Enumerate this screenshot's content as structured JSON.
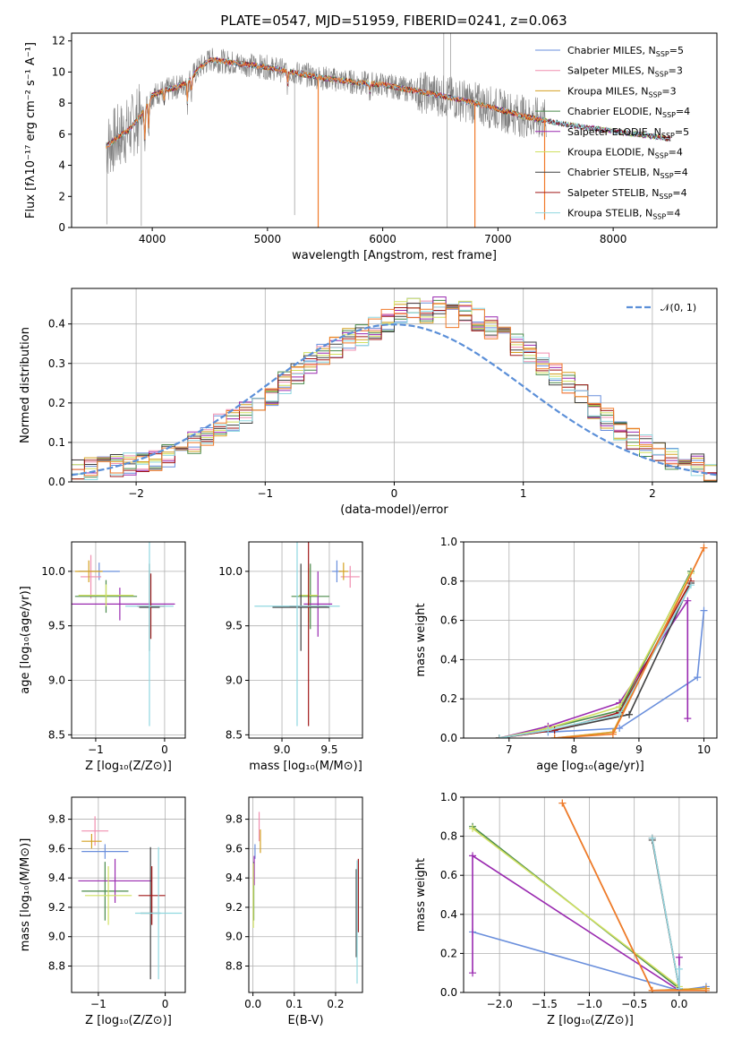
{
  "figure": {
    "title": "PLATE=0547, MJD=51959, FIBERID=0241, z=0.063"
  },
  "colors": {
    "Chabrier MILES": "#6a8fdc",
    "Salpeter MILES": "#f08fb0",
    "Kroupa MILES": "#d4a020",
    "Chabrier ELODIE": "#4a8a4a",
    "Salpeter ELODIE": "#9a2ab0",
    "Kroupa ELODIE": "#d0e060",
    "Chabrier STELIB": "#404040",
    "Salpeter STELIB": "#a01818",
    "Kroupa STELIB": "#90d8e0",
    "orange": "#f07a2a",
    "data_gray": "#808080",
    "normal_dashed": "#5b8fd8"
  },
  "chart_data": [
    {
      "id": "spectrum",
      "type": "line",
      "title": "PLATE=0547, MJD=51959, FIBERID=0241, z=0.063",
      "xlabel": "wavelength [Angstrom, rest frame]",
      "ylabel": "Flux [fλ10⁻¹⁷ erg cm⁻² s⁻¹ A⁻¹]",
      "xlim": [
        3300,
        8900
      ],
      "ylim": [
        0,
        12.5
      ],
      "xticks": [
        4000,
        5000,
        6000,
        7000,
        8000
      ],
      "yticks": [
        0,
        2,
        4,
        6,
        8,
        10,
        12
      ],
      "xtick_labels": [
        "4000",
        "5000",
        "6000",
        "7000",
        "8000"
      ],
      "ytick_labels": [
        "0",
        "2",
        "4",
        "6",
        "8",
        "10",
        "12"
      ],
      "legend_loc": "upper-right",
      "legend": [
        {
          "label": "Chabrier MILES, N",
          "sub": "SSP",
          "tail": "=5"
        },
        {
          "label": "Salpeter MILES, N",
          "sub": "SSP",
          "tail": "=3"
        },
        {
          "label": "Kroupa MILES, N",
          "sub": "SSP",
          "tail": "=3"
        },
        {
          "label": "Chabrier ELODIE, N",
          "sub": "SSP",
          "tail": "=4"
        },
        {
          "label": "Salpeter ELODIE, N",
          "sub": "SSP",
          "tail": "=5"
        },
        {
          "label": "Kroupa ELODIE, N",
          "sub": "SSP",
          "tail": "=4"
        },
        {
          "label": "Chabrier STELIB, N",
          "sub": "SSP",
          "tail": "=4"
        },
        {
          "label": "Salpeter STELIB, N",
          "sub": "SSP",
          "tail": "=4"
        },
        {
          "label": "Kroupa STELIB, N",
          "sub": "SSP",
          "tail": "=4"
        }
      ],
      "continuum": {
        "x": [
          3600,
          3700,
          3800,
          3900,
          4000,
          4100,
          4200,
          4300,
          4400,
          4500,
          4600,
          4800,
          5000,
          5200,
          5500,
          5800,
          6000,
          6200,
          6500,
          6800,
          7000,
          7200,
          7400,
          7600,
          7800,
          8000,
          8200,
          8400,
          8500
        ],
        "y": [
          5.2,
          5.8,
          6.3,
          7.2,
          8.5,
          8.8,
          9.0,
          9.3,
          10.2,
          10.8,
          10.7,
          10.5,
          10.3,
          10.0,
          9.6,
          9.3,
          9.2,
          8.9,
          8.5,
          8.0,
          7.6,
          7.2,
          6.9,
          6.6,
          6.4,
          6.2,
          6.0,
          5.8,
          5.7
        ]
      },
      "absorption_lines": [
        {
          "x": 3934,
          "depth": 2.5
        },
        {
          "x": 3969,
          "depth": 2.0
        },
        {
          "x": 4102,
          "depth": 1.0
        },
        {
          "x": 4304,
          "depth": 1.5
        },
        {
          "x": 4340,
          "depth": 1.2
        },
        {
          "x": 5175,
          "depth": 1.0
        },
        {
          "x": 5890,
          "depth": 0.7
        }
      ],
      "model_spikes": [
        {
          "x": 5440,
          "to": 0
        },
        {
          "x": 6800,
          "to": 0
        },
        {
          "x": 7405,
          "to": 0.5
        }
      ]
    },
    {
      "id": "residuals",
      "type": "bar",
      "xlabel": "(data-model)/error",
      "ylabel": "Normed distribution",
      "xlim": [
        -2.5,
        2.5
      ],
      "ylim": [
        0,
        0.49
      ],
      "xticks": [
        -2,
        -1,
        0,
        1,
        2
      ],
      "yticks": [
        0.0,
        0.1,
        0.2,
        0.3,
        0.4
      ],
      "xtick_labels": [
        "−2",
        "−1",
        "0",
        "1",
        "2"
      ],
      "ytick_labels": [
        "0.0",
        "0.1",
        "0.2",
        "0.3",
        "0.4"
      ],
      "legend_loc": "upper-right",
      "legend": [
        "𝒩(0, 1)"
      ],
      "bin_width": 0.1,
      "bin_start": -2.5,
      "hist_base": [
        0.03,
        0.035,
        0.04,
        0.04,
        0.045,
        0.05,
        0.055,
        0.065,
        0.085,
        0.1,
        0.12,
        0.145,
        0.155,
        0.175,
        0.2,
        0.22,
        0.25,
        0.27,
        0.3,
        0.32,
        0.34,
        0.36,
        0.37,
        0.39,
        0.41,
        0.43,
        0.44,
        0.43,
        0.44,
        0.42,
        0.43,
        0.41,
        0.39,
        0.37,
        0.35,
        0.33,
        0.3,
        0.27,
        0.25,
        0.22,
        0.19,
        0.16,
        0.13,
        0.11,
        0.09,
        0.075,
        0.06,
        0.05,
        0.045,
        0.03
      ]
    },
    {
      "id": "age-vs-Z",
      "type": "scatter",
      "xlabel": "Z [log₁₀(Z/Z⊙)]",
      "ylabel": "age  [log₁₀(age/yr)]",
      "xlim": [
        -1.35,
        0.3
      ],
      "ylim": [
        8.47,
        10.27
      ],
      "xticks": [
        -1,
        0
      ],
      "yticks": [
        8.5,
        9.0,
        9.5,
        10.0
      ],
      "xtick_labels": [
        "−1",
        "0"
      ],
      "ytick_labels": [
        "8.5",
        "9.0",
        "9.5",
        "10.0"
      ],
      "points": [
        {
          "s": "Chabrier MILES",
          "x": -0.95,
          "y": 10.0,
          "xe": 0.3,
          "ye": 0.08
        },
        {
          "s": "Salpeter MILES",
          "x": -1.07,
          "y": 9.95,
          "xe": 0.15,
          "ye": 0.2
        },
        {
          "s": "Kroupa MILES",
          "x": -1.1,
          "y": 10.0,
          "xe": 0.2,
          "ye": 0.1
        },
        {
          "s": "Chabrier ELODIE",
          "x": -0.85,
          "y": 9.77,
          "xe": 0.45,
          "ye": 0.15
        },
        {
          "s": "Salpeter ELODIE",
          "x": -0.65,
          "y": 9.7,
          "xe": 0.8,
          "ye": 0.15
        },
        {
          "s": "Kroupa ELODIE",
          "x": -0.85,
          "y": 9.78,
          "xe": 0.4,
          "ye": 0.1
        },
        {
          "s": "Chabrier STELIB",
          "x": -0.22,
          "y": 9.67,
          "xe": 0.15,
          "ye": 0.4
        },
        {
          "s": "Salpeter STELIB",
          "x": -0.2,
          "y": 9.68,
          "xe": 0.2,
          "ye": 0.3
        },
        {
          "s": "Kroupa STELIB",
          "x": -0.22,
          "y": 9.68,
          "xe": 0.35,
          "ye": 1.1
        }
      ]
    },
    {
      "id": "age-vs-mass",
      "type": "scatter",
      "xlabel": "mass [log₁₀(M/M⊙)]",
      "ylabel": "",
      "xlim": [
        8.65,
        9.85
      ],
      "ylim": [
        8.47,
        10.27
      ],
      "xticks": [
        9.0,
        9.5
      ],
      "yticks": [
        8.5,
        9.0,
        9.5,
        10.0
      ],
      "xtick_labels": [
        "9.0",
        "9.5"
      ],
      "ytick_labels": [
        "8.5",
        "9.0",
        "9.5",
        "10.0"
      ],
      "points": [
        {
          "s": "Chabrier MILES",
          "x": 9.58,
          "y": 10.0,
          "xe": 0.05,
          "ye": 0.1
        },
        {
          "s": "Salpeter MILES",
          "x": 9.72,
          "y": 9.95,
          "xe": 0.1,
          "ye": 0.1
        },
        {
          "s": "Kroupa MILES",
          "x": 9.65,
          "y": 10.0,
          "xe": 0.05,
          "ye": 0.08
        },
        {
          "s": "Chabrier ELODIE",
          "x": 9.3,
          "y": 9.77,
          "xe": 0.2,
          "ye": 0.3
        },
        {
          "s": "Salpeter ELODIE",
          "x": 9.38,
          "y": 9.7,
          "xe": 0.15,
          "ye": 0.3
        },
        {
          "s": "Kroupa ELODIE",
          "x": 9.28,
          "y": 9.78,
          "xe": 0.1,
          "ye": 0.25
        },
        {
          "s": "Chabrier STELIB",
          "x": 9.2,
          "y": 9.67,
          "xe": 0.3,
          "ye": 0.4
        },
        {
          "s": "Salpeter STELIB",
          "x": 9.28,
          "y": 9.68,
          "xe": 0.2,
          "ye": 1.1
        },
        {
          "s": "Kroupa STELIB",
          "x": 9.16,
          "y": 9.68,
          "xe": 0.45,
          "ye": 1.1
        }
      ]
    },
    {
      "id": "massweight-vs-age",
      "type": "line",
      "xlabel": "age  [log₁₀(age/yr)]",
      "ylabel": "mass weight",
      "xlim": [
        6.3,
        10.2
      ],
      "ylim": [
        0,
        1.0
      ],
      "xticks": [
        7,
        8,
        9,
        10
      ],
      "yticks": [
        0.0,
        0.2,
        0.4,
        0.6,
        0.8,
        1.0
      ],
      "xtick_labels": [
        "7",
        "8",
        "9",
        "10"
      ],
      "ytick_labels": [
        "0.0",
        "0.2",
        "0.4",
        "0.6",
        "0.8",
        "1.0"
      ],
      "series": [
        {
          "s": "Chabrier MILES",
          "x": [
            7.6,
            8.7,
            9.9,
            10.0
          ],
          "y": [
            0.03,
            0.05,
            0.31,
            0.65
          ]
        },
        {
          "s": "Salpeter MILES",
          "x": [
            7.7,
            8.6,
            10.0
          ],
          "y": [
            0.0,
            0.03,
            0.97
          ]
        },
        {
          "s": "Kroupa MILES",
          "x": [
            7.7,
            8.6,
            10.0
          ],
          "y": [
            0.0,
            0.03,
            0.97
          ]
        },
        {
          "s": "Chabrier ELODIE",
          "x": [
            6.85,
            7.6,
            8.7,
            9.8
          ],
          "y": [
            0.0,
            0.05,
            0.14,
            0.85
          ]
        },
        {
          "s": "Salpeter ELODIE",
          "x": [
            6.85,
            7.6,
            8.7,
            9.75,
            9.75
          ],
          "y": [
            0.0,
            0.06,
            0.18,
            0.7,
            0.1
          ]
        },
        {
          "s": "Kroupa ELODIE",
          "x": [
            6.85,
            7.6,
            8.7,
            9.8
          ],
          "y": [
            0.0,
            0.05,
            0.16,
            0.84
          ]
        },
        {
          "s": "Chabrier STELIB",
          "x": [
            6.85,
            7.7,
            8.85,
            9.8
          ],
          "y": [
            0.0,
            0.04,
            0.12,
            0.79
          ]
        },
        {
          "s": "Salpeter STELIB",
          "x": [
            6.85,
            7.7,
            8.7,
            9.8
          ],
          "y": [
            0.0,
            0.04,
            0.13,
            0.8
          ]
        },
        {
          "s": "Kroupa STELIB",
          "x": [
            6.85,
            7.6,
            8.7,
            9.8
          ],
          "y": [
            0.0,
            0.04,
            0.12,
            0.78
          ]
        },
        {
          "s": "orange",
          "x": [
            7.7,
            8.6,
            10.0
          ],
          "y": [
            0.0,
            0.02,
            0.97
          ]
        }
      ]
    },
    {
      "id": "mass-vs-Z",
      "type": "scatter",
      "xlabel": "Z [log₁₀(Z/Z⊙)]",
      "ylabel": "mass [log₁₀(M/M⊙)]",
      "xlim": [
        -1.4,
        0.3
      ],
      "ylim": [
        8.62,
        9.95
      ],
      "xticks": [
        -1,
        0
      ],
      "yticks": [
        8.8,
        9.0,
        9.2,
        9.4,
        9.6,
        9.8
      ],
      "xtick_labels": [
        "−1",
        "0"
      ],
      "ytick_labels": [
        "8.8",
        "9.0",
        "9.2",
        "9.4",
        "9.6",
        "9.8"
      ],
      "points": [
        {
          "s": "Chabrier MILES",
          "x": -0.9,
          "y": 9.58,
          "xe": 0.35,
          "ye": 0.05
        },
        {
          "s": "Salpeter MILES",
          "x": -1.05,
          "y": 9.72,
          "xe": 0.2,
          "ye": 0.1
        },
        {
          "s": "Kroupa MILES",
          "x": -1.1,
          "y": 9.65,
          "xe": 0.15,
          "ye": 0.05
        },
        {
          "s": "Chabrier ELODIE",
          "x": -0.9,
          "y": 9.31,
          "xe": 0.35,
          "ye": 0.2
        },
        {
          "s": "Salpeter ELODIE",
          "x": -0.75,
          "y": 9.38,
          "xe": 0.55,
          "ye": 0.15
        },
        {
          "s": "Kroupa ELODIE",
          "x": -0.85,
          "y": 9.28,
          "xe": 0.35,
          "ye": 0.2
        },
        {
          "s": "Chabrier STELIB",
          "x": -0.22,
          "y": 9.16,
          "xe": 0.15,
          "ye": 0.45
        },
        {
          "s": "Salpeter STELIB",
          "x": -0.2,
          "y": 9.28,
          "xe": 0.2,
          "ye": 0.2
        },
        {
          "s": "Kroupa STELIB",
          "x": -0.1,
          "y": 9.16,
          "xe": 0.35,
          "ye": 0.45
        }
      ]
    },
    {
      "id": "mass-vs-EBV",
      "type": "scatter",
      "xlabel": "E(B-V)",
      "ylabel": "",
      "xlim": [
        -0.01,
        0.265
      ],
      "ylim": [
        8.62,
        9.95
      ],
      "xticks": [
        0.0,
        0.1,
        0.2
      ],
      "yticks": [
        8.8,
        9.0,
        9.2,
        9.4,
        9.6,
        9.8
      ],
      "xtick_labels": [
        "0.0",
        "0.1",
        "0.2"
      ],
      "ytick_labels": [
        "8.8",
        "9.0",
        "9.2",
        "9.4",
        "9.6",
        "9.8"
      ],
      "points": [
        {
          "s": "Chabrier MILES",
          "x": 0.005,
          "y": 9.58,
          "xe": 0.0,
          "ye": 0.05
        },
        {
          "s": "Salpeter MILES",
          "x": 0.015,
          "y": 9.75,
          "xe": 0.0,
          "ye": 0.1
        },
        {
          "s": "Kroupa MILES",
          "x": 0.018,
          "y": 9.65,
          "xe": 0.0,
          "ye": 0.08
        },
        {
          "s": "Chabrier ELODIE",
          "x": 0.002,
          "y": 9.31,
          "xe": 0.0,
          "ye": 0.2
        },
        {
          "s": "Salpeter ELODIE",
          "x": 0.003,
          "y": 9.45,
          "xe": 0.0,
          "ye": 0.1
        },
        {
          "s": "Kroupa ELODIE",
          "x": 0.001,
          "y": 9.28,
          "xe": 0.0,
          "ye": 0.22
        },
        {
          "s": "Chabrier STELIB",
          "x": 0.25,
          "y": 9.16,
          "xe": 0.0,
          "ye": 0.3
        },
        {
          "s": "Salpeter STELIB",
          "x": 0.255,
          "y": 9.28,
          "xe": 0.0,
          "ye": 0.25
        },
        {
          "s": "Kroupa STELIB",
          "x": 0.252,
          "y": 9.1,
          "xe": 0.0,
          "ye": 0.42
        }
      ]
    },
    {
      "id": "massweight-vs-Z",
      "type": "line",
      "xlabel": "Z [log₁₀(Z/Z⊙)]",
      "ylabel": "mass weight",
      "xlim": [
        -2.4,
        0.42
      ],
      "ylim": [
        0,
        1.0
      ],
      "xticks": [
        -2.0,
        -1.5,
        -1.0,
        -0.5,
        0.0
      ],
      "yticks": [
        0.0,
        0.2,
        0.4,
        0.6,
        0.8,
        1.0
      ],
      "xtick_labels": [
        "−2.0",
        "−1.5",
        "−1.0",
        "−0.5",
        "0.0"
      ],
      "ytick_labels": [
        "0.0",
        "0.2",
        "0.4",
        "0.6",
        "0.8",
        "1.0"
      ],
      "series": [
        {
          "s": "Chabrier MILES",
          "x": [
            -2.3,
            0.0,
            0.3
          ],
          "y": [
            0.31,
            0.01,
            0.03
          ]
        },
        {
          "s": "Salpeter MILES",
          "x": [
            -1.3,
            -0.3,
            0.3
          ],
          "y": [
            0.97,
            0.01,
            0.02
          ]
        },
        {
          "s": "Kroupa MILES",
          "x": [
            -1.3,
            -0.3,
            0.3
          ],
          "y": [
            0.97,
            0.01,
            0.02
          ]
        },
        {
          "s": "Chabrier ELODIE",
          "x": [
            -2.3,
            0.0
          ],
          "y": [
            0.85,
            0.02
          ]
        },
        {
          "s": "Salpeter ELODIE",
          "x": [
            -2.3,
            -2.3,
            0.0,
            0.0
          ],
          "y": [
            0.1,
            0.7,
            0.01,
            0.18
          ]
        },
        {
          "s": "Kroupa ELODIE",
          "x": [
            -2.3,
            0.0
          ],
          "y": [
            0.84,
            0.03
          ]
        },
        {
          "s": "Chabrier STELIB",
          "x": [
            -0.3,
            0.0
          ],
          "y": [
            0.78,
            0.02
          ]
        },
        {
          "s": "Salpeter STELIB",
          "x": [
            -0.3,
            0.0
          ],
          "y": [
            0.79,
            0.02
          ]
        },
        {
          "s": "Kroupa STELIB",
          "x": [
            -0.3,
            0.0,
            0.0
          ],
          "y": [
            0.79,
            0.02,
            0.12
          ]
        },
        {
          "s": "orange",
          "x": [
            -1.3,
            -0.3,
            0.3
          ],
          "y": [
            0.97,
            0.01,
            0.01
          ]
        }
      ]
    }
  ]
}
